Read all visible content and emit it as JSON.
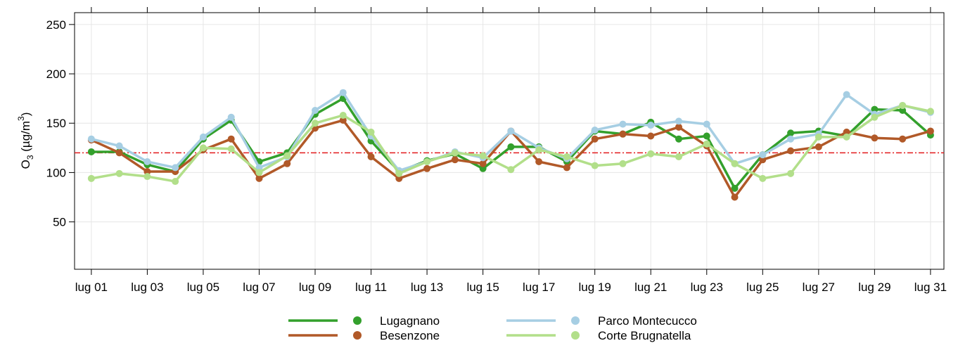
{
  "chart_data": {
    "type": "line",
    "ylabel_parts": [
      "O",
      "3",
      " (µg/m",
      "3",
      ")"
    ],
    "categories": [
      "lug 01",
      null,
      "lug 03",
      null,
      "lug 05",
      null,
      "lug 07",
      null,
      "lug 09",
      null,
      "lug 11",
      null,
      "lug 13",
      null,
      "lug 15",
      null,
      "lug 17",
      null,
      "lug 19",
      null,
      "lug 21",
      null,
      "lug 23",
      null,
      "lug 25",
      null,
      "lug 27",
      null,
      "lug 29",
      null,
      "lug 31"
    ],
    "series": [
      {
        "name": "Lugagnano",
        "color": "#33a02c",
        "values": [
          121,
          121,
          108,
          101,
          134,
          153,
          111,
          120,
          159,
          175,
          132,
          101,
          112,
          119,
          104,
          126,
          126,
          111,
          142,
          139,
          151,
          134,
          137,
          84,
          118,
          140,
          142,
          137,
          164,
          163,
          138
        ]
      },
      {
        "name": "Besenzone",
        "color": "#b15928",
        "values": [
          133,
          120,
          101,
          101,
          123,
          134,
          94,
          109,
          145,
          153,
          116,
          94,
          104,
          113,
          109,
          142,
          111,
          105,
          134,
          139,
          137,
          146,
          127,
          75,
          113,
          122,
          126,
          141,
          135,
          134,
          142
        ]
      },
      {
        "name": "Parco Montecucco",
        "color": "#a6cee3",
        "values": [
          134,
          127,
          111,
          105,
          136,
          156,
          105,
          116,
          163,
          181,
          137,
          102,
          111,
          121,
          115,
          142,
          125,
          114,
          143,
          149,
          148,
          152,
          149,
          109,
          118,
          134,
          139,
          179,
          159,
          168,
          161
        ]
      },
      {
        "name": "Corte Brugnatella",
        "color": "#b2df8a",
        "values": [
          94,
          99,
          96,
          91,
          125,
          124,
          100,
          117,
          150,
          158,
          141,
          99,
          111,
          120,
          117,
          103,
          123,
          116,
          107,
          109,
          119,
          116,
          129,
          109,
          94,
          99,
          136,
          136,
          156,
          168,
          162
        ]
      }
    ],
    "threshold": 120,
    "threshold_color": "#e31a1c",
    "ylim": [
      2,
      262
    ],
    "yticks": [
      50,
      100,
      150,
      200,
      250
    ],
    "grid": true
  }
}
